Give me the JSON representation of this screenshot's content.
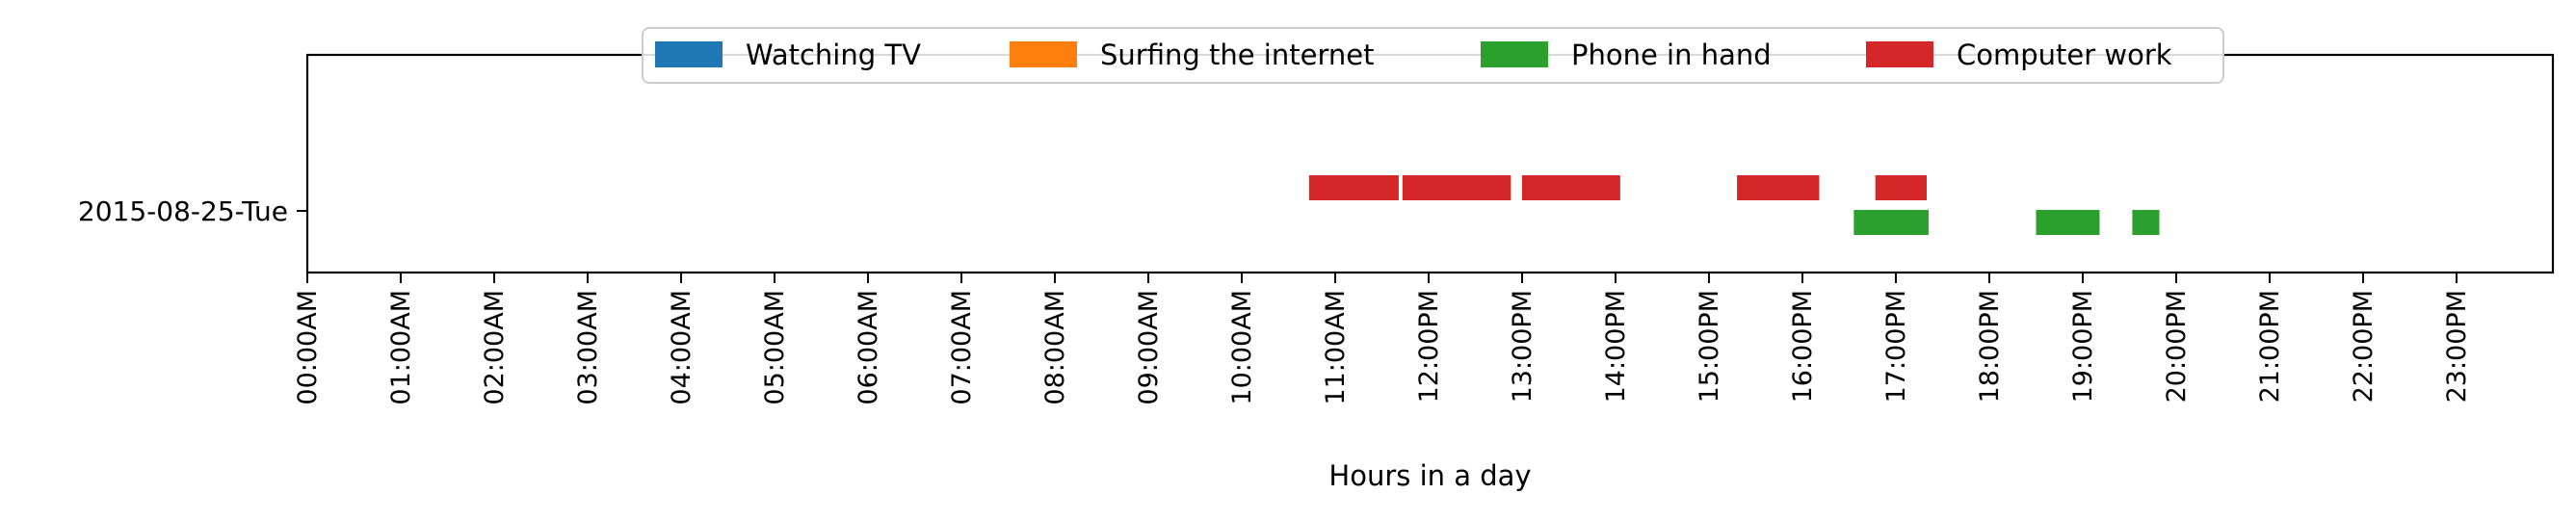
{
  "chart_data": {
    "type": "bar",
    "orientation": "horizontal-timeline",
    "title": "",
    "xlabel": "Hours in a day",
    "ylabel": "",
    "xlim_hours": [
      0,
      24
    ],
    "x_ticks": [
      "00:00AM",
      "01:00AM",
      "02:00AM",
      "03:00AM",
      "04:00AM",
      "05:00AM",
      "06:00AM",
      "07:00AM",
      "08:00AM",
      "09:00AM",
      "10:00AM",
      "11:00AM",
      "12:00PM",
      "13:00PM",
      "14:00PM",
      "15:00PM",
      "16:00PM",
      "17:00PM",
      "18:00PM",
      "19:00PM",
      "20:00PM",
      "21:00PM",
      "22:00PM",
      "23:00PM"
    ],
    "categories": [
      "2015-08-25-Tue"
    ],
    "legend_position": "top-center",
    "grid": false,
    "series": [
      {
        "name": "Watching TV",
        "color": "#1f77b4",
        "intervals": []
      },
      {
        "name": "Surfing the internet",
        "color": "#ff7f0e",
        "intervals": []
      },
      {
        "name": "Phone in hand",
        "color": "#2ca02c",
        "intervals": [
          {
            "day": "2015-08-25-Tue",
            "start": 16.55,
            "end": 17.35
          },
          {
            "day": "2015-08-25-Tue",
            "start": 18.5,
            "end": 19.18
          },
          {
            "day": "2015-08-25-Tue",
            "start": 19.53,
            "end": 19.82
          }
        ]
      },
      {
        "name": "Computer work",
        "color": "#d62728",
        "intervals": [
          {
            "day": "2015-08-25-Tue",
            "start": 10.72,
            "end": 11.68
          },
          {
            "day": "2015-08-25-Tue",
            "start": 11.72,
            "end": 12.88
          },
          {
            "day": "2015-08-25-Tue",
            "start": 13.0,
            "end": 14.05
          },
          {
            "day": "2015-08-25-Tue",
            "start": 15.3,
            "end": 16.18
          },
          {
            "day": "2015-08-25-Tue",
            "start": 16.78,
            "end": 17.33
          }
        ]
      }
    ]
  }
}
